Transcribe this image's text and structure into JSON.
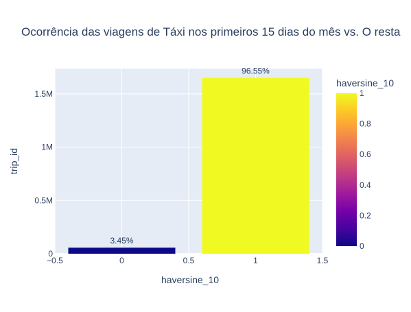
{
  "chart_data": {
    "type": "bar",
    "title": "Ocorrência das viagens de Táxi nos primeiros 15 dias do mês vs. O resta",
    "xlabel": "haversine_10",
    "ylabel": "trip_id",
    "x": [
      0,
      1
    ],
    "values": [
      57000,
      1650000
    ],
    "text_labels": [
      "3.45%",
      "96.55%"
    ],
    "xlim": [
      -0.5,
      1.5
    ],
    "ylim": [
      0,
      1737000
    ],
    "x_ticks": [
      -0.5,
      0,
      0.5,
      1,
      1.5
    ],
    "x_tick_labels": [
      "−0.5",
      "0",
      "0.5",
      "1",
      "1.5"
    ],
    "y_ticks": [
      0,
      500000,
      1000000,
      1500000
    ],
    "y_tick_labels": [
      "0",
      "0.5M",
      "1M",
      "1.5M"
    ],
    "grid": true,
    "colorbar": {
      "title": "haversine_10",
      "range": [
        0,
        1
      ],
      "ticks": [
        0,
        0.2,
        0.4,
        0.6,
        0.8,
        1
      ],
      "tick_labels": [
        "0",
        "0.2",
        "0.4",
        "0.6",
        "0.8",
        "1"
      ],
      "colorscale": [
        "#0d0887",
        "#46039f",
        "#7201a8",
        "#9c179e",
        "#bd3786",
        "#d8576b",
        "#ed7953",
        "#fb9f3a",
        "#fdca26",
        "#f0f921"
      ]
    },
    "colors": {
      "plot_bg": "#e5ecf6",
      "grid": "#ffffff",
      "text": "#2a3f5f"
    }
  }
}
